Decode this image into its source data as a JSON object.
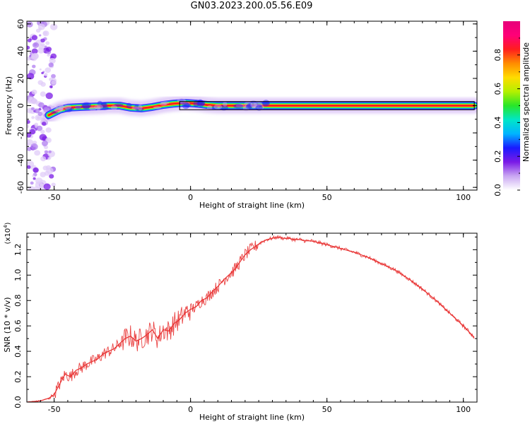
{
  "title": "GN03.2023.200.05.56.E09",
  "chart_data": [
    {
      "type": "heatmap",
      "xlabel": "Height of straight line (km)",
      "ylabel": "Frequency (Hz)",
      "xlim": [
        -60,
        105
      ],
      "ylim": [
        -62,
        62
      ],
      "xticks": [
        -50,
        0,
        50,
        100
      ],
      "yticks": [
        60,
        40,
        20,
        0,
        -20,
        -40,
        -60
      ],
      "colorbar": {
        "label": "Normalized spectral amplitude",
        "range": [
          0,
          1
        ],
        "ticks": [
          "0.0",
          "0.2",
          "0.4",
          "0.6",
          "0.8"
        ],
        "colors": [
          "#ffffff",
          "#c9a6f2",
          "#7a1ae6",
          "#1a1aff",
          "#00b4ff",
          "#00e6c8",
          "#28e628",
          "#b4f000",
          "#ffdc00",
          "#ff8c00",
          "#ff1e1e",
          "#ff0078",
          "#e6007a"
        ]
      },
      "ridge": {
        "x": [
          -52,
          -48,
          -45,
          -40,
          -34,
          -30,
          -26,
          -22,
          -18,
          -14,
          -10,
          -6,
          -2,
          2,
          6,
          10,
          20,
          30,
          50,
          75,
          104
        ],
        "freq_hz": [
          -7,
          -3,
          -1.5,
          -1,
          -0.5,
          0,
          0,
          -1.5,
          -2,
          -1,
          0.5,
          1.5,
          2,
          1.5,
          0.5,
          0,
          0,
          0,
          0,
          0,
          0
        ]
      }
    },
    {
      "type": "line",
      "xlabel": "Height of straight line (km)",
      "ylabel": "SNR (10 * v/v)",
      "multiplier": "(x10",
      "multiplier_exp": "4",
      "multiplier_close": ")",
      "xlim": [
        -60,
        105
      ],
      "ylim": [
        0,
        1.33
      ],
      "xticks": [
        -50,
        0,
        50,
        100
      ],
      "yticks": [
        "0.0",
        "0.2",
        "0.4",
        "0.6",
        "0.8",
        "1.0",
        "1.2"
      ],
      "series": [
        {
          "color": "#e83030",
          "x": [
            -60,
            -55,
            -52,
            -50,
            -48,
            -46,
            -44,
            -42,
            -40,
            -38,
            -36,
            -34,
            -32,
            -30,
            -28,
            -26,
            -24,
            -22,
            -20,
            -18,
            -16,
            -14,
            -12,
            -10,
            -8,
            -6,
            -4,
            -2,
            0,
            2,
            4,
            6,
            8,
            10,
            12,
            14,
            16,
            18,
            20,
            22,
            24,
            26,
            28,
            30,
            32,
            34,
            36,
            38,
            40,
            42,
            44,
            46,
            48,
            50,
            55,
            60,
            65,
            70,
            75,
            80,
            85,
            90,
            95,
            100,
            104
          ],
          "y": [
            0.0,
            0.01,
            0.03,
            0.06,
            0.14,
            0.22,
            0.2,
            0.25,
            0.27,
            0.3,
            0.32,
            0.34,
            0.38,
            0.4,
            0.42,
            0.46,
            0.5,
            0.52,
            0.48,
            0.5,
            0.53,
            0.57,
            0.5,
            0.57,
            0.56,
            0.62,
            0.65,
            0.7,
            0.73,
            0.75,
            0.8,
            0.82,
            0.87,
            0.91,
            0.96,
            1.0,
            1.04,
            1.1,
            1.16,
            1.2,
            1.23,
            1.26,
            1.28,
            1.29,
            1.3,
            1.29,
            1.29,
            1.28,
            1.28,
            1.27,
            1.27,
            1.26,
            1.25,
            1.24,
            1.21,
            1.18,
            1.14,
            1.09,
            1.04,
            0.97,
            0.89,
            0.8,
            0.7,
            0.6,
            0.51
          ]
        }
      ]
    }
  ]
}
